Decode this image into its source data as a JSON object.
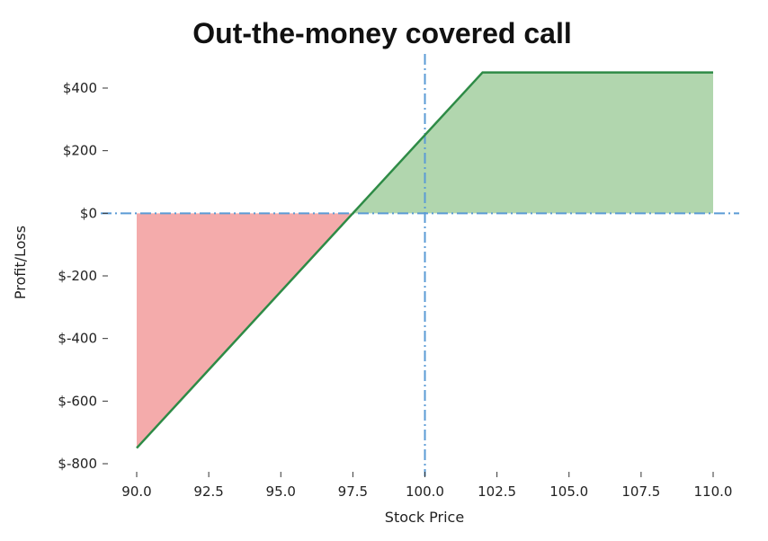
{
  "chart_data": {
    "type": "line",
    "title": "Out-the-money covered call",
    "xlabel": "Stock Price",
    "ylabel": "Profit/Loss",
    "xlim": [
      90.0,
      110.0
    ],
    "ylim": [
      -800,
      400
    ],
    "xticks": [
      90.0,
      92.5,
      95.0,
      97.5,
      100.0,
      102.5,
      105.0,
      107.5,
      110.0
    ],
    "xtick_labels": [
      "90.0",
      "92.5",
      "95.0",
      "97.5",
      "100.0",
      "102.5",
      "105.0",
      "107.5",
      "110.0"
    ],
    "yticks": [
      400,
      200,
      0,
      -200,
      -400,
      -600,
      -800
    ],
    "ytick_labels": [
      "$400",
      "$200",
      "$0",
      "$-200",
      "$-400",
      "$-600",
      "$-800"
    ],
    "series": [
      {
        "x": [
          90.0,
          102.0,
          110.0
        ],
        "y": [
          -750,
          450,
          450
        ]
      }
    ],
    "reference_lines": {
      "horizontal_y": 0,
      "vertical_x": 100.0
    },
    "fill": {
      "loss_color": "#f4abab",
      "profit_color": "#b1d6ae"
    },
    "colors": {
      "line": "#2e8b46",
      "reference": "#5b9bd5"
    },
    "grid": false,
    "legend": "none"
  }
}
